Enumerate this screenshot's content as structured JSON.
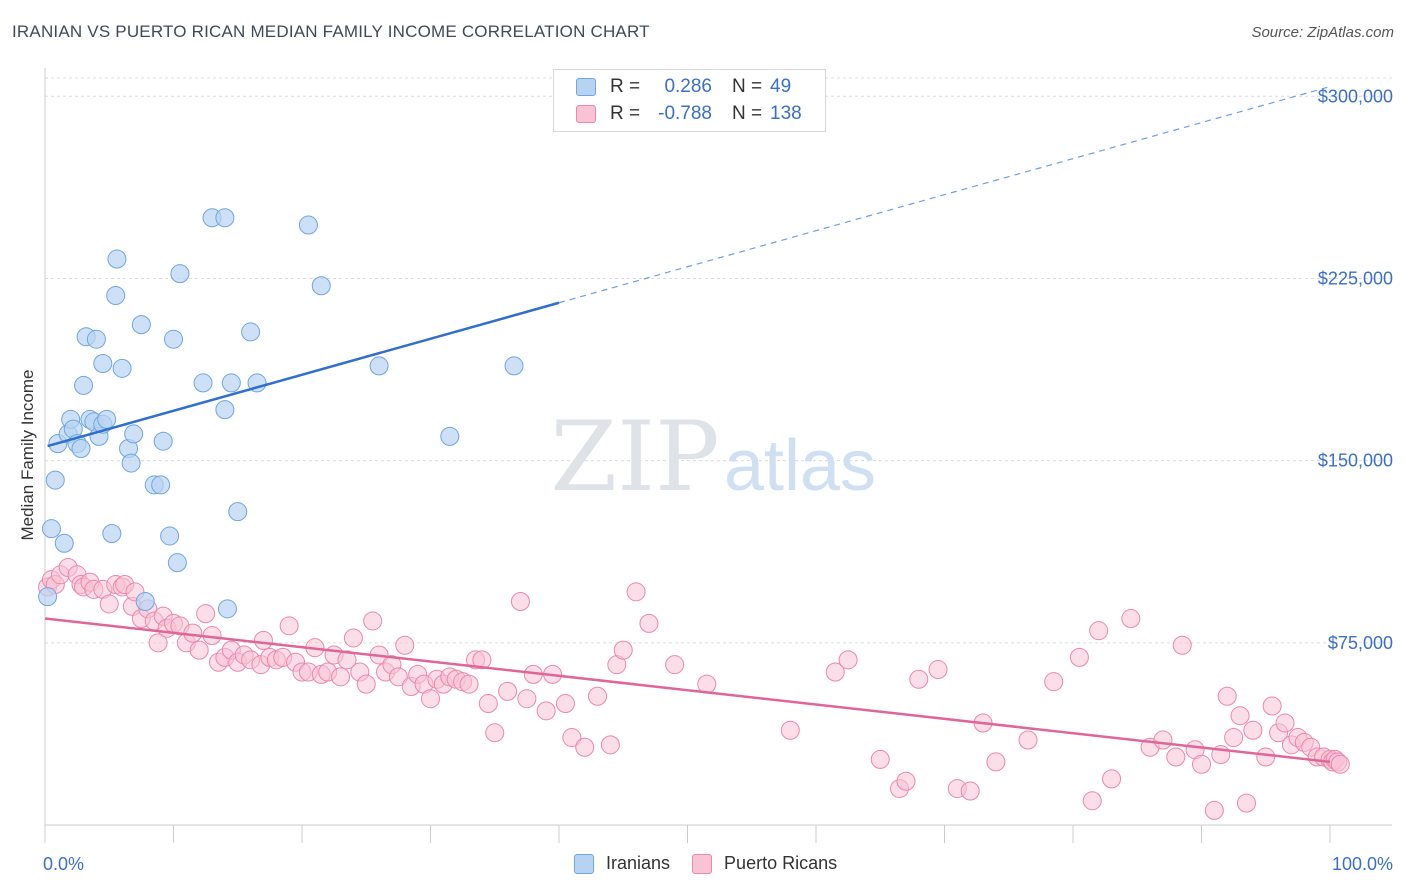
{
  "title": "IRANIAN VS PUERTO RICAN MEDIAN FAMILY INCOME CORRELATION CHART",
  "source": "Source: ZipAtlas.com",
  "watermark": {
    "zip": "ZIP",
    "atlas": "atlas"
  },
  "colors": {
    "iranians": "#6fa6e0",
    "iranians_fill": "#b8d3f2",
    "puerto_ricans": "#ef86ab",
    "puerto_ricans_fill": "#f7c3d5",
    "axis_text": "#3a6fc7"
  },
  "legend": {
    "row1": {
      "r_label": "R =",
      "r_value": "0.286",
      "n_label": "N =",
      "n_value": "49"
    },
    "row2": {
      "r_label": "R =",
      "r_value": "-0.788",
      "n_label": "N =",
      "n_value": "138"
    }
  },
  "bottom_legend": {
    "series1": "Iranians",
    "series2": "Puerto Ricans"
  },
  "chart_data": {
    "type": "scatter",
    "ylabel": "Median Family Income",
    "x_tick_labels": [
      "0.0%",
      "100.0%"
    ],
    "y_tick_labels": [
      "$75,000",
      "$150,000",
      "$225,000",
      "$300,000"
    ],
    "y_ticks": [
      75000,
      150000,
      225000,
      300000
    ],
    "xlim": [
      0,
      100
    ],
    "ylim": [
      0,
      310000
    ],
    "grid": true,
    "series": [
      {
        "name": "Iranians",
        "trend": {
          "x0": 0.2,
          "y0": 156000,
          "x1": 40,
          "y1": 215000,
          "x_dash_end": 100,
          "y_dash_end": 304000
        },
        "points": [
          [
            0.2,
            94000
          ],
          [
            0.5,
            122000
          ],
          [
            0.8,
            142000
          ],
          [
            1.0,
            157000
          ],
          [
            1.5,
            116000
          ],
          [
            1.8,
            161000
          ],
          [
            2.0,
            167000
          ],
          [
            2.2,
            163000
          ],
          [
            2.5,
            157000
          ],
          [
            2.8,
            155000
          ],
          [
            3.0,
            181000
          ],
          [
            3.2,
            201000
          ],
          [
            3.5,
            167000
          ],
          [
            3.8,
            166000
          ],
          [
            4.0,
            200000
          ],
          [
            4.2,
            160000
          ],
          [
            4.5,
            165000
          ],
          [
            4.5,
            190000
          ],
          [
            4.8,
            167000
          ],
          [
            5.2,
            120000
          ],
          [
            5.5,
            218000
          ],
          [
            5.6,
            233000
          ],
          [
            6.0,
            188000
          ],
          [
            6.5,
            155000
          ],
          [
            6.7,
            149000
          ],
          [
            6.9,
            161000
          ],
          [
            7.5,
            206000
          ],
          [
            7.8,
            92000
          ],
          [
            8.5,
            140000
          ],
          [
            9.0,
            140000
          ],
          [
            9.2,
            158000
          ],
          [
            9.7,
            119000
          ],
          [
            10.0,
            200000
          ],
          [
            10.3,
            108000
          ],
          [
            10.5,
            227000
          ],
          [
            12.3,
            182000
          ],
          [
            13.0,
            250000
          ],
          [
            14.0,
            250000
          ],
          [
            14.0,
            171000
          ],
          [
            14.2,
            89000
          ],
          [
            14.5,
            182000
          ],
          [
            15.0,
            129000
          ],
          [
            16.0,
            203000
          ],
          [
            16.5,
            182000
          ],
          [
            20.5,
            247000
          ],
          [
            21.5,
            222000
          ],
          [
            26.0,
            189000
          ],
          [
            31.5,
            160000
          ],
          [
            36.5,
            189000
          ]
        ]
      },
      {
        "name": "Puerto Ricans",
        "trend": {
          "x0": 0,
          "y0": 85000,
          "x1": 100,
          "y1": 26000
        },
        "points": [
          [
            0.2,
            98000
          ],
          [
            0.5,
            101000
          ],
          [
            0.8,
            99000
          ],
          [
            1.2,
            103000
          ],
          [
            1.8,
            106000
          ],
          [
            2.5,
            103000
          ],
          [
            2.8,
            99000
          ],
          [
            3.0,
            98000
          ],
          [
            3.5,
            100000
          ],
          [
            3.8,
            97000
          ],
          [
            4.5,
            97000
          ],
          [
            5.0,
            91000
          ],
          [
            5.5,
            99000
          ],
          [
            6.0,
            98000
          ],
          [
            6.2,
            99000
          ],
          [
            6.8,
            90000
          ],
          [
            7.0,
            96000
          ],
          [
            7.5,
            85000
          ],
          [
            8.0,
            89000
          ],
          [
            8.5,
            84000
          ],
          [
            8.8,
            75000
          ],
          [
            9.2,
            86000
          ],
          [
            9.5,
            81000
          ],
          [
            10.0,
            83000
          ],
          [
            10.5,
            82000
          ],
          [
            11.0,
            75000
          ],
          [
            11.5,
            79000
          ],
          [
            12.0,
            72000
          ],
          [
            12.5,
            87000
          ],
          [
            13.0,
            78000
          ],
          [
            13.5,
            67000
          ],
          [
            14.0,
            69000
          ],
          [
            14.5,
            72000
          ],
          [
            15.0,
            67000
          ],
          [
            15.5,
            70000
          ],
          [
            16.0,
            68000
          ],
          [
            16.8,
            66000
          ],
          [
            17.0,
            76000
          ],
          [
            17.5,
            69000
          ],
          [
            18.0,
            68000
          ],
          [
            18.5,
            69000
          ],
          [
            19.0,
            82000
          ],
          [
            19.5,
            67000
          ],
          [
            20.0,
            63000
          ],
          [
            20.5,
            63000
          ],
          [
            21.0,
            73000
          ],
          [
            21.5,
            62000
          ],
          [
            22.0,
            63000
          ],
          [
            22.5,
            70000
          ],
          [
            23.0,
            61000
          ],
          [
            23.5,
            68000
          ],
          [
            24.0,
            77000
          ],
          [
            24.5,
            63000
          ],
          [
            25.0,
            58000
          ],
          [
            25.5,
            84000
          ],
          [
            26.0,
            70000
          ],
          [
            26.5,
            63000
          ],
          [
            27.0,
            66000
          ],
          [
            27.5,
            61000
          ],
          [
            28.0,
            74000
          ],
          [
            28.5,
            57000
          ],
          [
            29.0,
            62000
          ],
          [
            29.5,
            58000
          ],
          [
            30.0,
            52000
          ],
          [
            30.5,
            60000
          ],
          [
            31.0,
            58000
          ],
          [
            31.5,
            61000
          ],
          [
            32.0,
            60000
          ],
          [
            32.5,
            59000
          ],
          [
            33.0,
            58000
          ],
          [
            33.5,
            68000
          ],
          [
            34.0,
            68000
          ],
          [
            34.5,
            50000
          ],
          [
            35.0,
            38000
          ],
          [
            36.0,
            55000
          ],
          [
            37.0,
            92000
          ],
          [
            37.5,
            52000
          ],
          [
            38.0,
            62000
          ],
          [
            39.0,
            47000
          ],
          [
            39.5,
            62000
          ],
          [
            40.5,
            50000
          ],
          [
            41.0,
            36000
          ],
          [
            42.0,
            32000
          ],
          [
            43.0,
            53000
          ],
          [
            44.0,
            33000
          ],
          [
            44.5,
            66000
          ],
          [
            45.0,
            72000
          ],
          [
            46.0,
            96000
          ],
          [
            47.0,
            83000
          ],
          [
            49.0,
            66000
          ],
          [
            51.5,
            58000
          ],
          [
            58.0,
            39000
          ],
          [
            61.5,
            63000
          ],
          [
            62.5,
            68000
          ],
          [
            65.0,
            27000
          ],
          [
            66.5,
            15000
          ],
          [
            67.0,
            18000
          ],
          [
            68.0,
            60000
          ],
          [
            69.5,
            64000
          ],
          [
            71.0,
            15000
          ],
          [
            72.0,
            14000
          ],
          [
            73.0,
            42000
          ],
          [
            74.0,
            26000
          ],
          [
            76.5,
            35000
          ],
          [
            78.5,
            59000
          ],
          [
            80.5,
            69000
          ],
          [
            81.5,
            10000
          ],
          [
            82.0,
            80000
          ],
          [
            83.0,
            19000
          ],
          [
            84.5,
            85000
          ],
          [
            86.0,
            32000
          ],
          [
            87.0,
            35000
          ],
          [
            88.0,
            28000
          ],
          [
            88.5,
            74000
          ],
          [
            89.5,
            31000
          ],
          [
            90.0,
            25000
          ],
          [
            91.0,
            6000
          ],
          [
            91.5,
            29000
          ],
          [
            92.0,
            53000
          ],
          [
            92.5,
            36000
          ],
          [
            93.0,
            45000
          ],
          [
            93.5,
            9000
          ],
          [
            94.0,
            39000
          ],
          [
            95.0,
            28000
          ],
          [
            95.5,
            49000
          ],
          [
            96.0,
            38000
          ],
          [
            96.5,
            42000
          ],
          [
            97.0,
            33000
          ],
          [
            97.5,
            36000
          ],
          [
            98.0,
            34000
          ],
          [
            98.5,
            32000
          ],
          [
            99.0,
            28000
          ],
          [
            99.5,
            28000
          ],
          [
            100.0,
            27000
          ],
          [
            100.2,
            26000
          ],
          [
            100.4,
            27000
          ],
          [
            100.6,
            26000
          ],
          [
            100.8,
            25000
          ]
        ]
      }
    ]
  }
}
